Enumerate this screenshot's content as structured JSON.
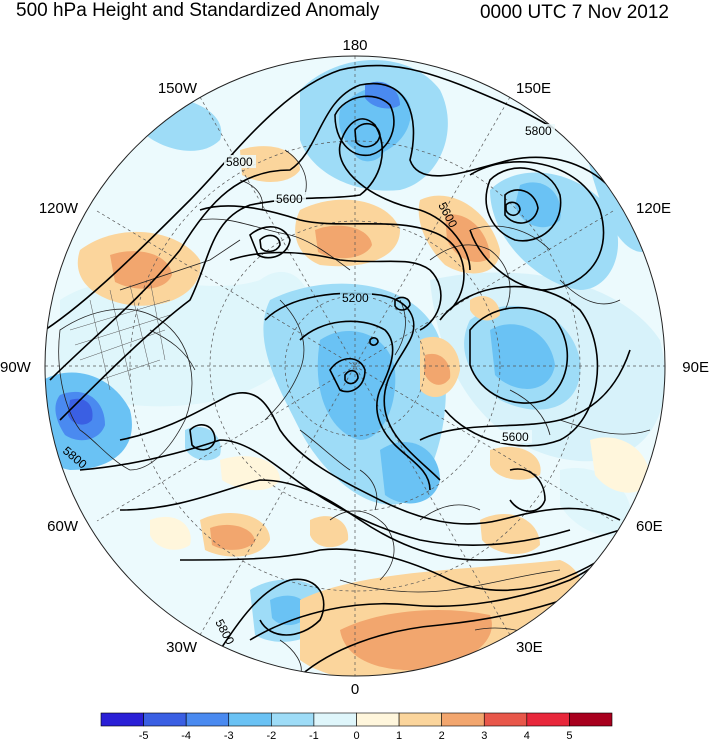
{
  "title": "500 hPa Height and Standardized Anomaly",
  "timestamp": "0000 UTC 7 Nov 2012",
  "longitude_labels": {
    "top": "180",
    "bottom": "0",
    "left": "90W",
    "right": "90E",
    "upper_left_1": "150W",
    "upper_left_2": "120W",
    "lower_left_1": "60W",
    "lower_left_2": "30W",
    "upper_right_1": "150E",
    "upper_right_2": "120E",
    "lower_right_1": "60E",
    "lower_right_2": "30E"
  },
  "contour_labels": [
    "5800",
    "5800",
    "5600",
    "5600",
    "5200",
    "5600",
    "5800",
    "5800"
  ],
  "colorbar": {
    "colors": [
      "#2a1fd6",
      "#3a5fe3",
      "#4a8af0",
      "#6ac2f4",
      "#9edcf7",
      "#dff6fb",
      "#fff6dc",
      "#fbd59c",
      "#f2a66e",
      "#e8574a",
      "#e8273b",
      "#a8001e"
    ],
    "labels": [
      "-5",
      "-4",
      "-3",
      "-2",
      "-1",
      "0",
      "1",
      "2",
      "3",
      "4",
      "5"
    ]
  }
}
